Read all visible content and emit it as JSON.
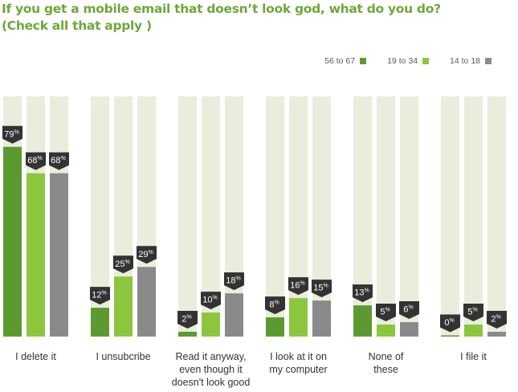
{
  "title": {
    "line1": "If you get a mobile email that doesn’t look god, what do you do?",
    "line2": "(Check all that apply )"
  },
  "colors": {
    "background_bar": "#e8eedb",
    "badge": "#333333",
    "badge_text": "#ffffff"
  },
  "chart_data": {
    "type": "bar",
    "ylim": [
      0,
      100
    ],
    "categories": [
      "I delete it",
      "I unsubcribe",
      "Read it anyway, even though it doesn't look good",
      "I look at it on my computer",
      "None of these",
      "I file it"
    ],
    "category_lines": [
      [
        "I delete it"
      ],
      [
        "I unsubcribe"
      ],
      [
        "Read it anyway,",
        "even though it",
        "doesn't look good"
      ],
      [
        "I look at it on",
        "my computer"
      ],
      [
        "None of",
        "these"
      ],
      [
        "I file it"
      ]
    ],
    "value_suffix": "%",
    "series": [
      {
        "name": "56 to 67",
        "color": "#5c9a31",
        "values": [
          79,
          12,
          2,
          8,
          13,
          0
        ]
      },
      {
        "name": "19 to 34",
        "color": "#8cc63f",
        "values": [
          68,
          25,
          10,
          16,
          5,
          5
        ]
      },
      {
        "name": "14 to 18",
        "color": "#8a8a8a",
        "values": [
          68,
          29,
          18,
          15,
          6,
          2
        ]
      }
    ]
  }
}
